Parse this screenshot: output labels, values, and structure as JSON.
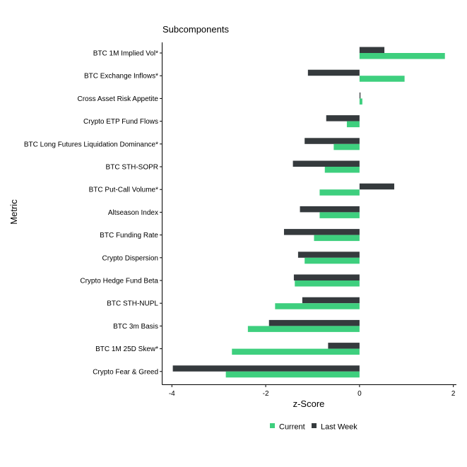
{
  "chart_data": {
    "type": "bar",
    "orientation": "horizontal",
    "title": "Subcomponents",
    "xlabel": "z-Score",
    "ylabel": "Metric",
    "xlim": [
      -4.2,
      2.05
    ],
    "xticks": [
      -4,
      -2,
      0,
      2
    ],
    "xtick_labels": [
      "-4",
      "-2",
      "0",
      "2"
    ],
    "grid": false,
    "legend_position": "bottom",
    "categories": [
      "BTC 1M Implied Vol*",
      "BTC Exchange Inflows*",
      "Cross Asset Risk Appetite",
      "Crypto ETP Fund Flows",
      "BTC Long Futures Liquidation Dominance*",
      "BTC STH-SOPR",
      "BTC Put-Call Volume*",
      "Altseason Index",
      "BTC Funding Rate",
      "Crypto Dispersion",
      "Crypto Hedge Fund Beta",
      "BTC STH-NUPL",
      "BTC 3m Basis",
      "BTC 1M 25D Skew*",
      "Crypto Fear & Greed"
    ],
    "series": [
      {
        "name": "Current",
        "color": "#3ecf7e",
        "values": [
          1.82,
          0.96,
          0.06,
          -0.27,
          -0.55,
          -0.74,
          -0.85,
          -0.85,
          -0.97,
          -1.17,
          -1.38,
          -1.8,
          -2.38,
          -2.72,
          -2.85
        ]
      },
      {
        "name": "Last Week",
        "color": "#353a3d",
        "values": [
          0.53,
          -1.1,
          0.02,
          -0.71,
          -1.17,
          -1.42,
          0.74,
          -1.27,
          -1.61,
          -1.31,
          -1.4,
          -1.22,
          -1.93,
          -0.67,
          -3.98
        ]
      }
    ]
  }
}
